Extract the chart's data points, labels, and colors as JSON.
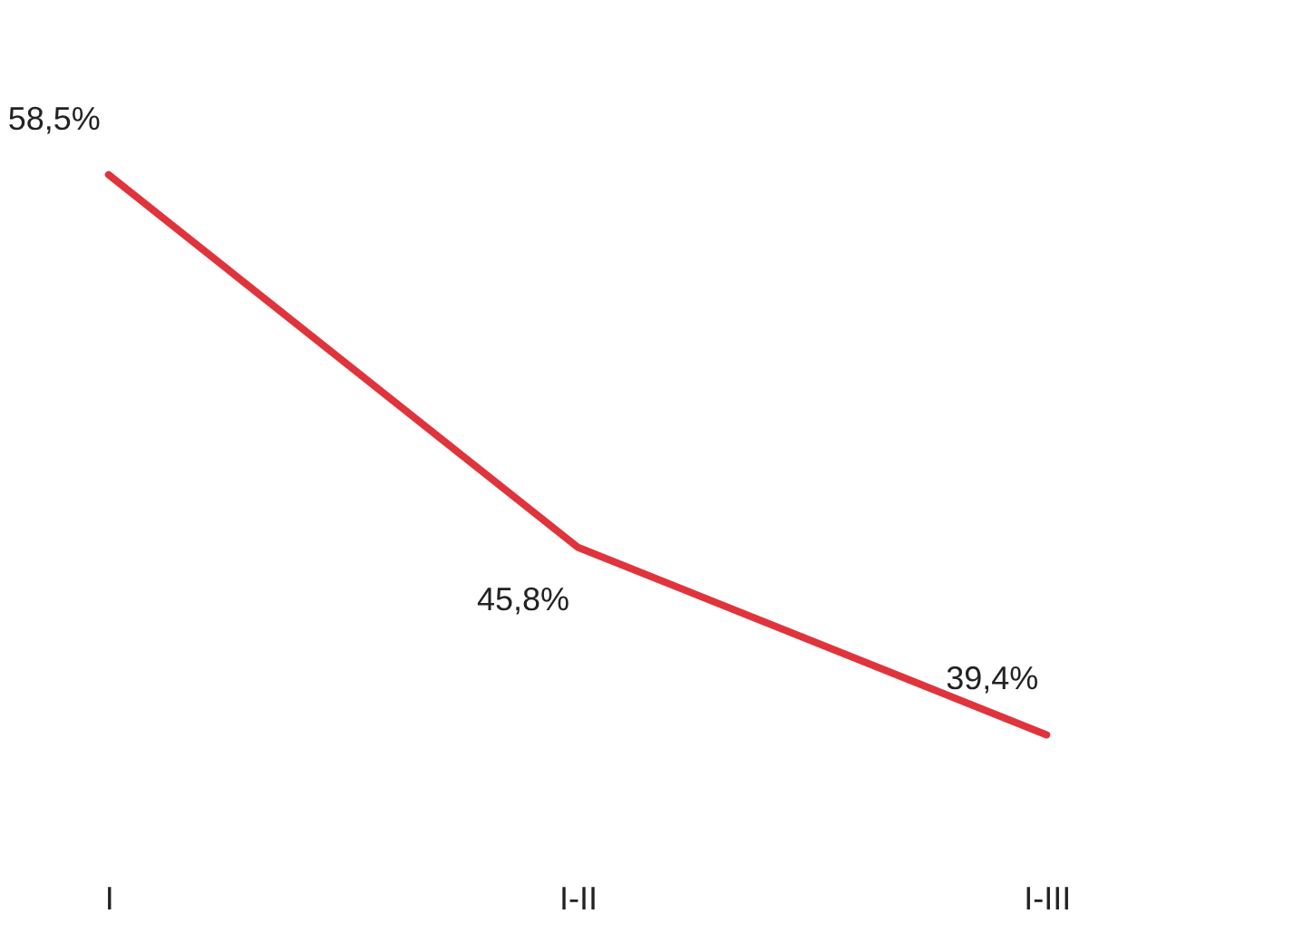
{
  "chart_data": {
    "type": "line",
    "categories": [
      "I",
      "I-II",
      "I-III"
    ],
    "series": [
      {
        "color": "#e0343c",
        "values": [
          58.5,
          45.8,
          39.4
        ],
        "value_labels": [
          "58,5%",
          "45,8%",
          "39,4%"
        ]
      }
    ],
    "grid": false,
    "marker": "none",
    "line_style": "solid",
    "tick_labels": "x"
  }
}
